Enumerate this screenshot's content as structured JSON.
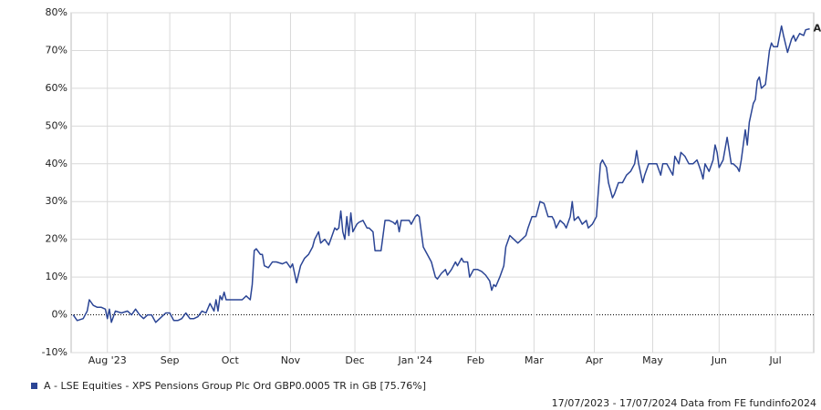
{
  "chart_data": {
    "type": "line",
    "series": [
      {
        "name": "A - LSE Equities - XPS Pensions Group Plc Ord GBP0.0005 TR in GB [75.76%]",
        "color": "#2b4595",
        "x": [
          0,
          2,
          5,
          7,
          8,
          10,
          12,
          14,
          16,
          17,
          18,
          19,
          21,
          24,
          27,
          29,
          31,
          33,
          35,
          37,
          39,
          41,
          43,
          46,
          48,
          50,
          52,
          54,
          56,
          58,
          60,
          62,
          64,
          66,
          68,
          70,
          71,
          72,
          73,
          74,
          75,
          76,
          80,
          84,
          86,
          88,
          89,
          90,
          91,
          93,
          94,
          95,
          97,
          99,
          101,
          104,
          106,
          108,
          109,
          111,
          113,
          115,
          117,
          119,
          120,
          122,
          123,
          125,
          127,
          128,
          130,
          131,
          132,
          133,
          134,
          135,
          136,
          137,
          138,
          139,
          141,
          142,
          144,
          146,
          147,
          149,
          150,
          153,
          155,
          157,
          159,
          160,
          161,
          162,
          163,
          165,
          167,
          168,
          170,
          171,
          172,
          174,
          175,
          178,
          180,
          181,
          183,
          185,
          186,
          188,
          190,
          191,
          193,
          194,
          196,
          197,
          199,
          201,
          203,
          205,
          207,
          208,
          209,
          210,
          212,
          214,
          215,
          217,
          219,
          221,
          223,
          225,
          226,
          228,
          230,
          232,
          234,
          236,
          238,
          239,
          240,
          242,
          244,
          245,
          247,
          248,
          249,
          251,
          253,
          255,
          256,
          258,
          260,
          262,
          263,
          265,
          266,
          268,
          269,
          271,
          273,
          275,
          277,
          279,
          280,
          281,
          283,
          284,
          286,
          288,
          290,
          292,
          293,
          295,
          297,
          298,
          299,
          301,
          302,
          304,
          306,
          308,
          310,
          312,
          313,
          314,
          316,
          318,
          319,
          320,
          321,
          323,
          325,
          327,
          328,
          330,
          331,
          332,
          334,
          335,
          336,
          338,
          339,
          340,
          341,
          342,
          344,
          346,
          347,
          348,
          350,
          352,
          353,
          355,
          357,
          358,
          359,
          361,
          363,
          364,
          366
        ],
        "values": [
          0,
          -1.5,
          -1,
          1,
          4,
          2.5,
          2,
          2,
          1.5,
          -1,
          1.5,
          -2,
          1,
          0.5,
          1,
          0,
          1.5,
          0,
          -1,
          0,
          0,
          -2,
          -1,
          0.5,
          0.5,
          -1.5,
          -1.5,
          -1,
          0.5,
          -1,
          -1,
          -0.5,
          1,
          0.5,
          3,
          1,
          4,
          1,
          5,
          4,
          6,
          4,
          4,
          4,
          5,
          4,
          8,
          17,
          17.5,
          16,
          16,
          13,
          12.5,
          14,
          14,
          13.5,
          14,
          12.5,
          13.5,
          8.5,
          13,
          15,
          16,
          18,
          20,
          22,
          19,
          20,
          18.5,
          20,
          23,
          22.5,
          23,
          27.5,
          22,
          20,
          26,
          21,
          27,
          22,
          24,
          24.5,
          25,
          23,
          23,
          22,
          17,
          17,
          25,
          25,
          24.5,
          24,
          25,
          22,
          25,
          25,
          25,
          24,
          26,
          26.5,
          26,
          18,
          17,
          14,
          10,
          9.5,
          11,
          12,
          10.5,
          12,
          14,
          13,
          15,
          14,
          14,
          10,
          12,
          12,
          11.5,
          10.5,
          9,
          6.5,
          8,
          7.5,
          10,
          13,
          18,
          21,
          20,
          19,
          20,
          21,
          23,
          26,
          26,
          30,
          29.5,
          26,
          26,
          25,
          23,
          25,
          24,
          23,
          26,
          30,
          25,
          26,
          24,
          25,
          23,
          24,
          26,
          40,
          41,
          39,
          35,
          31,
          32,
          35,
          35,
          37,
          38,
          40,
          43.5,
          40,
          35,
          37,
          40,
          40,
          40,
          37,
          40,
          40,
          38,
          37,
          42,
          40,
          43,
          42,
          40,
          40,
          41,
          38,
          36,
          40,
          38,
          41,
          45,
          43,
          39,
          41,
          47,
          40,
          40,
          39,
          38,
          41,
          49,
          45,
          51,
          56,
          57,
          62,
          63,
          60,
          61,
          70,
          72,
          71,
          71,
          76.5,
          74,
          69.5,
          73,
          74,
          72.5,
          74.5,
          74,
          75.5,
          75.76
        ]
      }
    ],
    "end_label": "A",
    "xlim": [
      -1,
      368
    ],
    "xticks": [
      {
        "value": 17,
        "label": "Aug '23"
      },
      {
        "value": 48,
        "label": "Sep"
      },
      {
        "value": 78,
        "label": "Oct"
      },
      {
        "value": 108,
        "label": "Nov"
      },
      {
        "value": 140,
        "label": "Dec"
      },
      {
        "value": 170,
        "label": "Jan '24"
      },
      {
        "value": 200,
        "label": "Feb"
      },
      {
        "value": 229,
        "label": "Mar"
      },
      {
        "value": 259,
        "label": "Apr"
      },
      {
        "value": 288,
        "label": "May"
      },
      {
        "value": 321,
        "label": "Jun"
      },
      {
        "value": 349,
        "label": "Jul"
      }
    ],
    "ylim": [
      -10,
      80
    ],
    "yticks": [
      {
        "value": -10,
        "label": "-10%"
      },
      {
        "value": 0,
        "label": "0%"
      },
      {
        "value": 10,
        "label": "10%"
      },
      {
        "value": 20,
        "label": "20%"
      },
      {
        "value": 30,
        "label": "30%"
      },
      {
        "value": 40,
        "label": "40%"
      },
      {
        "value": 50,
        "label": "50%"
      },
      {
        "value": 60,
        "label": "60%"
      },
      {
        "value": 70,
        "label": "70%"
      },
      {
        "value": 80,
        "label": "80%"
      }
    ],
    "grid": true,
    "source": "17/07/2023 - 17/07/2024 Data from FE fundinfo2024"
  }
}
